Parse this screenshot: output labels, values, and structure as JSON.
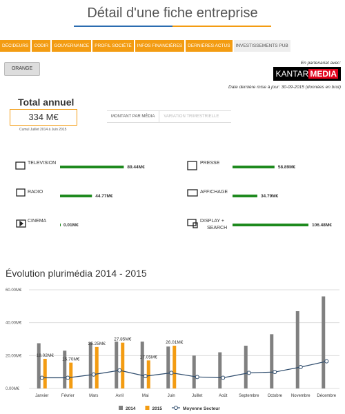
{
  "header": {
    "title": "Détail d'une fiche entreprise"
  },
  "tabs": {
    "items": [
      "DÉCIDEURS",
      "CODIR",
      "GOUVERNANCE",
      "PROFIL SOCIÉTÉ",
      "INFOS FINANCIÈRES",
      "DERNIÈRES ACTUS",
      "INVESTISSEMENTS PUB"
    ],
    "active": 6
  },
  "company_button": "ORANGE",
  "partner": {
    "caption": "En partenariat avec:",
    "logo_left": "KANTAR",
    "logo_right": "MEDIA"
  },
  "update_note": "Date dernière mise à jour: 30-09-2015 (données en brut)",
  "total": {
    "title": "Total annuel",
    "value": "334 M€",
    "note": "Cumul Juillet 2014 à Juin 2015"
  },
  "subtabs": {
    "items": [
      "MONTANT PAR MÉDIA",
      "VARIATION TRIMESTRIELLE"
    ],
    "active": 0
  },
  "media_chart": {
    "type": "bar",
    "categories": [
      "TELEVISION",
      "RADIO",
      "CINEMA",
      "PRESSE",
      "AFFICHAGE",
      "DISPLAY + SEARCH"
    ],
    "values": [
      89.44,
      44.77,
      0.01,
      58.89,
      34.79,
      106.48
    ],
    "value_labels": [
      "89.44M€",
      "44.77M€",
      "0.01M€",
      "58.89M€",
      "34.79M€",
      "106.48M€"
    ],
    "color": "#1e8a1e"
  },
  "chart_data": {
    "type": "bar",
    "title": "Évolution plurimédia 2014 - 2015",
    "categories": [
      "Janvier",
      "Février",
      "Mars",
      "Avril",
      "Mai",
      "Juin",
      "Juillet",
      "Août",
      "Septembre",
      "Octobre",
      "Novembre",
      "Décembre"
    ],
    "series": [
      {
        "name": "2014",
        "color": "#808080",
        "values": [
          27.5,
          23,
          28,
          28.5,
          28.5,
          25.5,
          20,
          22,
          26,
          33,
          47,
          56
        ]
      },
      {
        "name": "2015",
        "color": "#f39c12",
        "values": [
          18.02,
          15.7,
          25.25,
          27.85,
          17.05,
          26.01,
          null,
          null,
          null,
          null,
          null,
          null
        ],
        "value_labels": [
          "18.02M€",
          "15.70M€",
          "25.25M€",
          "27.85M€",
          "17.05M€",
          "26.01M€",
          null,
          null,
          null,
          null,
          null,
          null
        ]
      },
      {
        "name": "Moyenne Secteur",
        "type": "line",
        "color": "#2c4a6b",
        "values": [
          6.5,
          6.5,
          8.5,
          11,
          7.5,
          9.5,
          7,
          6.5,
          9.5,
          10,
          13,
          16.5
        ]
      }
    ],
    "ylim": [
      0,
      60
    ],
    "yticks": [
      {
        "value": 0,
        "label": "0.00M€"
      },
      {
        "value": 20,
        "label": "20.00M€"
      },
      {
        "value": 40,
        "label": "40.00M€"
      },
      {
        "value": 60,
        "label": "60.00M€"
      }
    ],
    "grid": true
  }
}
